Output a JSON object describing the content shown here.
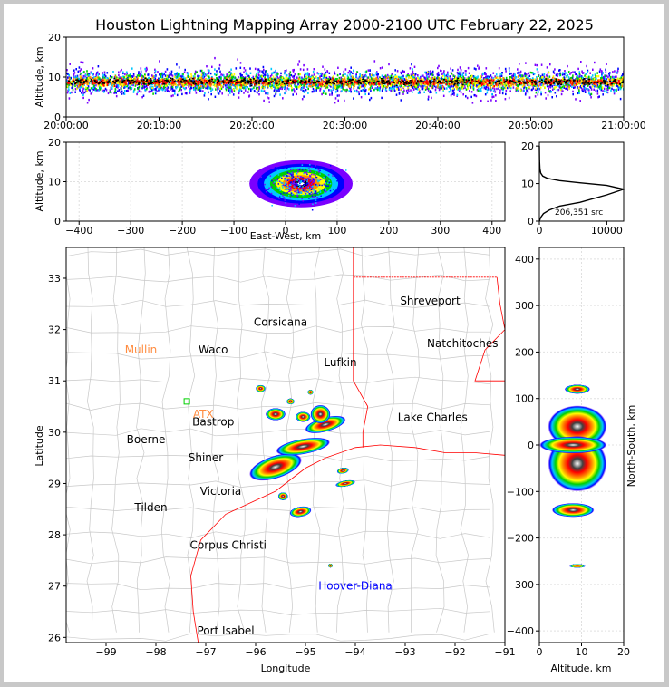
{
  "chart_data": {
    "title": "Houston Lightning Mapping Array 2000-2100 UTC February 22, 2025",
    "colors": {
      "density_scale": [
        "#7a00ff",
        "#0000ff",
        "#00c8ff",
        "#00d000",
        "#ffff00",
        "#ff9000",
        "#ff0000",
        "#000000",
        "#ffffff"
      ],
      "state_border": "#ff0000",
      "county_border": "#c8c8c8",
      "city_label": "#000000",
      "station_label": "#ff8c40",
      "platform_label": "#0000ff",
      "station_marker": "#00d000"
    },
    "panels": [
      {
        "id": "altitude_vs_time",
        "type": "heatmap",
        "xlabel": "",
        "ylabel": "Altitude, km",
        "xticks": [
          "20:00:00",
          "20:10:00",
          "20:20:00",
          "20:30:00",
          "20:40:00",
          "20:50:00",
          "21:00:00"
        ],
        "yticks": [
          "0",
          "10",
          "20"
        ],
        "xlim": [
          "20:00:00",
          "21:00:00"
        ],
        "ylim": [
          0,
          20
        ],
        "band": {
          "peak_km": 9,
          "core_min_km": 6,
          "core_max_km": 11
        }
      },
      {
        "id": "altitude_vs_east_west",
        "type": "heatmap",
        "xlabel": "East-West, km",
        "ylabel": "Altitude, km",
        "xticks": [
          "−400",
          "−300",
          "−200",
          "−100",
          "0",
          "100",
          "200",
          "300",
          "400"
        ],
        "yticks": [
          "0",
          "10",
          "20"
        ],
        "xlim": [
          -425,
          425
        ],
        "ylim": [
          0,
          20
        ],
        "grid": true,
        "clusters": [
          {
            "x_center": 30,
            "x_halfwidth": 80,
            "y_center": 9.5,
            "y_halfwidth": 3
          }
        ]
      },
      {
        "id": "altitude_histogram",
        "type": "line",
        "xlabel": "",
        "ylabel": "",
        "xticks": [
          "0",
          "10000"
        ],
        "yticks": [
          "0",
          "10",
          "20"
        ],
        "xlim": [
          0,
          12500
        ],
        "ylim": [
          0,
          21
        ],
        "annotation": "206,351 src",
        "x": [
          0,
          200,
          600,
          1500,
          3000,
          6000,
          10000,
          12500,
          10000,
          6000,
          3000,
          1200,
          500,
          200,
          80,
          30,
          0
        ],
        "y": [
          0,
          1,
          2,
          3,
          4,
          5,
          7,
          8.5,
          9.5,
          10.2,
          10.8,
          11.4,
          12,
          12.8,
          14,
          16,
          20
        ]
      },
      {
        "id": "plan_view",
        "type": "scatter",
        "xlabel": "Longitude",
        "ylabel": "Latitude",
        "xticks": [
          "−99",
          "−98",
          "−97",
          "−96",
          "−95",
          "−94",
          "−93",
          "−92",
          "−91"
        ],
        "yticks": [
          "26",
          "27",
          "28",
          "29",
          "30",
          "31",
          "32",
          "33"
        ],
        "xlim": [
          -99.8,
          -91
        ],
        "ylim": [
          25.9,
          33.6
        ],
        "cities": [
          {
            "name": "Shreveport",
            "lon": -92.5,
            "lat": 32.56
          },
          {
            "name": "Corsicana",
            "lon": -95.5,
            "lat": 32.14
          },
          {
            "name": "Natchitoches",
            "lon": -91.85,
            "lat": 31.73
          },
          {
            "name": "Waco",
            "lon": -96.85,
            "lat": 31.6
          },
          {
            "name": "Lufkin",
            "lon": -94.3,
            "lat": 31.36
          },
          {
            "name": "Lake Charles",
            "lon": -92.45,
            "lat": 30.29
          },
          {
            "name": "Bastrop",
            "lon": -96.85,
            "lat": 30.2
          },
          {
            "name": "Boerne",
            "lon": -98.2,
            "lat": 29.86
          },
          {
            "name": "Shiner",
            "lon": -97.0,
            "lat": 29.5
          },
          {
            "name": "Victoria",
            "lon": -96.7,
            "lat": 28.85
          },
          {
            "name": "Tilden",
            "lon": -98.1,
            "lat": 28.53
          },
          {
            "name": "Corpus Christi",
            "lon": -96.55,
            "lat": 27.8
          },
          {
            "name": "Port Isabel",
            "lon": -96.6,
            "lat": 26.13
          }
        ],
        "stations": [
          {
            "name": "Mullin",
            "lon": -98.3,
            "lat": 31.6
          },
          {
            "name": "ATX",
            "lon": -97.05,
            "lat": 30.35
          }
        ],
        "platforms": [
          {
            "name": "Hoover-Diana",
            "lon": -94.0,
            "lat": 27.0
          }
        ],
        "storm_cells": [
          {
            "lon": -95.6,
            "lat": 29.32,
            "rx": 0.55,
            "ry": 0.22,
            "tilt": -18
          },
          {
            "lon": -95.05,
            "lat": 29.72,
            "rx": 0.55,
            "ry": 0.15,
            "tilt": -10
          },
          {
            "lon": -94.6,
            "lat": 30.15,
            "rx": 0.42,
            "ry": 0.14,
            "tilt": -15
          },
          {
            "lon": -95.05,
            "lat": 30.3,
            "rx": 0.15,
            "ry": 0.1,
            "tilt": 0
          },
          {
            "lon": -95.6,
            "lat": 30.35,
            "rx": 0.2,
            "ry": 0.12,
            "tilt": 0
          },
          {
            "lon": -95.1,
            "lat": 28.45,
            "rx": 0.22,
            "ry": 0.1,
            "tilt": -10
          },
          {
            "lon": -94.25,
            "lat": 29.25,
            "rx": 0.12,
            "ry": 0.06,
            "tilt": -10
          },
          {
            "lon": -94.2,
            "lat": 29.0,
            "rx": 0.2,
            "ry": 0.06,
            "tilt": -10
          },
          {
            "lon": -95.45,
            "lat": 28.75,
            "rx": 0.1,
            "ry": 0.08,
            "tilt": 0
          },
          {
            "lon": -94.9,
            "lat": 30.78,
            "rx": 0.06,
            "ry": 0.05,
            "tilt": 0
          },
          {
            "lon": -94.7,
            "lat": 30.35,
            "rx": 0.2,
            "ry": 0.18,
            "tilt": 0
          },
          {
            "lon": -95.9,
            "lat": 30.85,
            "rx": 0.1,
            "ry": 0.07,
            "tilt": 0
          },
          {
            "lon": -95.3,
            "lat": 30.6,
            "rx": 0.08,
            "ry": 0.06,
            "tilt": 0
          },
          {
            "lon": -94.5,
            "lat": 27.4,
            "rx": 0.05,
            "ry": 0.04,
            "tilt": 0
          }
        ]
      },
      {
        "id": "north_south_vs_altitude",
        "type": "heatmap",
        "xlabel": "Altitude, km",
        "ylabel": "North-South, km",
        "xticks": [
          "0",
          "10",
          "20"
        ],
        "yticks": [
          "−400",
          "−300",
          "−200",
          "−100",
          "0",
          "100",
          "200",
          "300",
          "400"
        ],
        "xlim": [
          0,
          20
        ],
        "ylim": [
          -425,
          425
        ],
        "grid": true,
        "clusters": [
          {
            "x_center": 9,
            "y_center": 40,
            "x_halfwidth": 7,
            "y_halfwidth": 45
          },
          {
            "x_center": 9,
            "y_center": -40,
            "x_halfwidth": 7,
            "y_halfwidth": 60
          },
          {
            "x_center": 8,
            "y_center": 0,
            "x_halfwidth": 8,
            "y_halfwidth": 18
          },
          {
            "x_center": 8,
            "y_center": -140,
            "x_halfwidth": 5,
            "y_halfwidth": 15
          },
          {
            "x_center": 9,
            "y_center": 120,
            "x_halfwidth": 3,
            "y_halfwidth": 10
          },
          {
            "x_center": 9,
            "y_center": -260,
            "x_halfwidth": 2,
            "y_halfwidth": 4
          }
        ]
      }
    ]
  }
}
